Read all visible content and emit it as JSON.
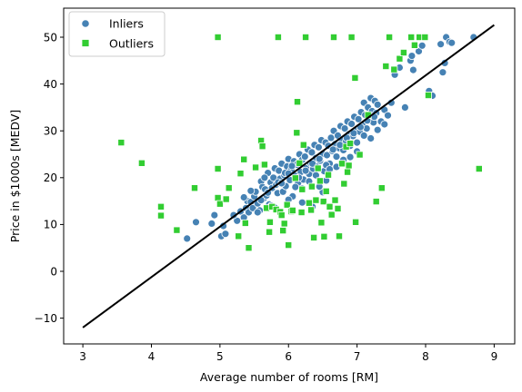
{
  "chart_data": {
    "type": "scatter",
    "xlabel": "Average number of rooms [RM]",
    "ylabel": "Price in $1000s [MEDV]",
    "xlim": [
      2.72,
      9.3
    ],
    "ylim": [
      -15.5,
      56.2
    ],
    "xticks": [
      3,
      4,
      5,
      6,
      7,
      8,
      9
    ],
    "yticks": [
      -10,
      0,
      10,
      20,
      30,
      40,
      50
    ],
    "grid": false,
    "legend": {
      "position": "upper-left",
      "entries": [
        "Inliers",
        "Outliers"
      ]
    },
    "colors": {
      "inliers": "#4682b4",
      "outliers": "#32cd32",
      "fit_line": "#000000",
      "marker_edge": "#ffffff"
    },
    "series": [
      {
        "name": "Inliers",
        "marker": "circle",
        "points": [
          [
            4.52,
            7.0
          ],
          [
            4.65,
            10.5
          ],
          [
            4.88,
            10.2
          ],
          [
            4.92,
            12.0
          ],
          [
            5.02,
            7.5
          ],
          [
            5.08,
            8.0
          ],
          [
            5.05,
            9.7
          ],
          [
            5.25,
            10.8
          ],
          [
            5.3,
            12.8
          ],
          [
            5.35,
            11.5
          ],
          [
            5.38,
            13.5
          ],
          [
            5.4,
            15.0
          ],
          [
            5.42,
            12.6
          ],
          [
            5.45,
            14.8
          ],
          [
            5.48,
            13.5
          ],
          [
            5.5,
            16.0
          ],
          [
            5.52,
            17.0
          ],
          [
            5.55,
            14.5
          ],
          [
            5.58,
            13.0
          ],
          [
            5.6,
            19.2
          ],
          [
            5.62,
            18.0
          ],
          [
            5.64,
            15.6
          ],
          [
            5.66,
            17.5
          ],
          [
            5.68,
            16.2
          ],
          [
            5.7,
            21.0
          ],
          [
            5.72,
            14.3
          ],
          [
            5.74,
            19.0
          ],
          [
            5.76,
            17.8
          ],
          [
            5.78,
            20.0
          ],
          [
            5.8,
            22.0
          ],
          [
            5.82,
            18.5
          ],
          [
            5.84,
            16.7
          ],
          [
            5.86,
            21.5
          ],
          [
            5.88,
            19.8
          ],
          [
            5.9,
            23.0
          ],
          [
            5.92,
            17.0
          ],
          [
            5.94,
            20.5
          ],
          [
            5.96,
            18.2
          ],
          [
            5.98,
            22.4
          ],
          [
            6.0,
            24.0
          ],
          [
            6.02,
            19.5
          ],
          [
            6.04,
            21.7
          ],
          [
            6.06,
            16.0
          ],
          [
            6.08,
            23.5
          ],
          [
            6.1,
            20.4
          ],
          [
            6.12,
            22.8
          ],
          [
            6.14,
            18.9
          ],
          [
            6.16,
            25.0
          ],
          [
            6.18,
            21.2
          ],
          [
            6.2,
            23.8
          ],
          [
            6.22,
            19.6
          ],
          [
            6.24,
            24.5
          ],
          [
            6.26,
            22.0
          ],
          [
            6.28,
            26.0
          ],
          [
            6.3,
            20.8
          ],
          [
            6.32,
            23.1
          ],
          [
            6.34,
            25.4
          ],
          [
            6.36,
            21.9
          ],
          [
            6.38,
            27.0
          ],
          [
            6.4,
            24.2
          ],
          [
            6.42,
            22.5
          ],
          [
            6.44,
            26.5
          ],
          [
            6.46,
            23.6
          ],
          [
            6.48,
            28.0
          ],
          [
            6.5,
            25.1
          ],
          [
            6.52,
            21.4
          ],
          [
            6.54,
            27.5
          ],
          [
            6.56,
            24.8
          ],
          [
            6.58,
            26.8
          ],
          [
            6.6,
            23.0
          ],
          [
            6.62,
            28.5
          ],
          [
            6.64,
            25.7
          ],
          [
            6.66,
            30.0
          ],
          [
            6.68,
            27.2
          ],
          [
            6.7,
            24.5
          ],
          [
            6.72,
            29.0
          ],
          [
            6.74,
            26.3
          ],
          [
            6.76,
            31.0
          ],
          [
            6.78,
            28.0
          ],
          [
            6.8,
            25.9
          ],
          [
            6.82,
            30.5
          ],
          [
            6.84,
            27.8
          ],
          [
            6.86,
            32.0
          ],
          [
            6.88,
            29.3
          ],
          [
            6.9,
            26.8
          ],
          [
            6.92,
            31.5
          ],
          [
            6.94,
            28.9
          ],
          [
            6.96,
            33.0
          ],
          [
            6.98,
            30.2
          ],
          [
            7.0,
            27.5
          ],
          [
            7.02,
            32.5
          ],
          [
            7.04,
            29.8
          ],
          [
            7.06,
            34.0
          ],
          [
            7.08,
            31.2
          ],
          [
            7.1,
            36.0
          ],
          [
            7.12,
            33.4
          ],
          [
            7.14,
            30.5
          ],
          [
            7.16,
            35.0
          ],
          [
            7.18,
            32.6
          ],
          [
            7.2,
            37.0
          ],
          [
            7.22,
            34.2
          ],
          [
            7.24,
            31.8
          ],
          [
            7.26,
            36.4
          ],
          [
            7.28,
            33.8
          ],
          [
            7.3,
            35.6
          ],
          [
            7.35,
            32.0
          ],
          [
            7.4,
            34.5
          ],
          [
            7.5,
            36.0
          ],
          [
            7.55,
            42.0
          ],
          [
            7.62,
            43.5
          ],
          [
            7.7,
            35.0
          ],
          [
            7.78,
            45.0
          ],
          [
            7.8,
            46.0
          ],
          [
            7.82,
            43.0
          ],
          [
            7.9,
            47.0
          ],
          [
            7.95,
            48.2
          ],
          [
            8.05,
            38.5
          ],
          [
            8.1,
            37.5
          ],
          [
            8.22,
            48.5
          ],
          [
            8.25,
            42.5
          ],
          [
            8.28,
            44.5
          ],
          [
            8.3,
            50.0
          ],
          [
            8.35,
            49.0
          ],
          [
            8.38,
            48.8
          ],
          [
            8.7,
            50.0
          ],
          [
            5.2,
            12.0
          ],
          [
            5.6,
            15.2
          ],
          [
            5.7,
            16.8
          ],
          [
            5.75,
            14.0
          ],
          [
            5.85,
            19.0
          ],
          [
            5.95,
            21.0
          ],
          [
            6.05,
            22.5
          ],
          [
            6.15,
            20.0
          ],
          [
            6.25,
            21.5
          ],
          [
            6.35,
            23.0
          ],
          [
            6.45,
            24.0
          ],
          [
            6.55,
            22.7
          ],
          [
            6.65,
            26.0
          ],
          [
            6.75,
            27.0
          ],
          [
            6.85,
            28.5
          ],
          [
            6.95,
            29.5
          ],
          [
            7.05,
            30.8
          ],
          [
            7.15,
            32.2
          ],
          [
            7.25,
            33.0
          ],
          [
            5.65,
            20.0
          ],
          [
            5.9,
            18.8
          ],
          [
            6.0,
            20.9
          ],
          [
            6.1,
            18.0
          ],
          [
            6.2,
            17.7
          ],
          [
            6.3,
            19.2
          ],
          [
            6.4,
            20.5
          ],
          [
            6.6,
            21.8
          ],
          [
            6.7,
            22.3
          ],
          [
            6.8,
            23.8
          ],
          [
            5.55,
            12.6
          ],
          [
            5.45,
            17.2
          ],
          [
            5.35,
            15.8
          ],
          [
            5.8,
            13.6
          ],
          [
            6.0,
            15.3
          ],
          [
            6.2,
            14.7
          ],
          [
            6.35,
            13.8
          ],
          [
            6.5,
            16.9
          ],
          [
            6.45,
            18.1
          ],
          [
            6.55,
            19.4
          ],
          [
            6.9,
            24.4
          ],
          [
            7.0,
            25.6
          ],
          [
            7.1,
            29.0
          ],
          [
            7.2,
            28.4
          ],
          [
            7.3,
            30.2
          ],
          [
            7.4,
            31.4
          ],
          [
            7.45,
            33.3
          ]
        ]
      },
      {
        "name": "Outliers",
        "marker": "square",
        "points": [
          [
            3.56,
            27.5
          ],
          [
            3.86,
            23.1
          ],
          [
            4.14,
            13.8
          ],
          [
            4.14,
            11.9
          ],
          [
            4.37,
            8.8
          ],
          [
            4.63,
            17.8
          ],
          [
            4.97,
            21.9
          ],
          [
            4.97,
            50.0
          ],
          [
            4.97,
            15.7
          ],
          [
            5.0,
            14.4
          ],
          [
            5.09,
            15.4
          ],
          [
            5.13,
            17.8
          ],
          [
            5.27,
            7.5
          ],
          [
            5.3,
            20.9
          ],
          [
            5.35,
            23.9
          ],
          [
            5.37,
            10.3
          ],
          [
            5.42,
            5.0
          ],
          [
            5.52,
            22.2
          ],
          [
            5.6,
            27.9
          ],
          [
            5.62,
            26.7
          ],
          [
            5.64,
            22.7
          ],
          [
            5.68,
            13.5
          ],
          [
            5.72,
            8.4
          ],
          [
            5.73,
            10.5
          ],
          [
            5.76,
            13.8
          ],
          [
            5.82,
            13.2
          ],
          [
            5.85,
            50.0
          ],
          [
            5.88,
            12.7
          ],
          [
            5.92,
            8.7
          ],
          [
            5.94,
            10.2
          ],
          [
            5.98,
            14.2
          ],
          [
            6.0,
            5.6
          ],
          [
            6.04,
            12.8
          ],
          [
            6.1,
            19.9
          ],
          [
            6.12,
            29.6
          ],
          [
            6.13,
            36.2
          ],
          [
            6.16,
            23.1
          ],
          [
            6.19,
            12.6
          ],
          [
            6.22,
            27.0
          ],
          [
            6.25,
            50.0
          ],
          [
            6.3,
            14.6
          ],
          [
            6.33,
            13.1
          ],
          [
            6.37,
            7.2
          ],
          [
            6.4,
            15.2
          ],
          [
            6.43,
            22.0
          ],
          [
            6.48,
            10.4
          ],
          [
            6.51,
            14.9
          ],
          [
            6.52,
            7.4
          ],
          [
            6.55,
            17.1
          ],
          [
            6.58,
            20.6
          ],
          [
            6.6,
            13.8
          ],
          [
            6.63,
            12.1
          ],
          [
            6.66,
            50.0
          ],
          [
            6.72,
            13.4
          ],
          [
            6.74,
            7.5
          ],
          [
            6.78,
            23.0
          ],
          [
            6.81,
            18.7
          ],
          [
            6.84,
            26.6
          ],
          [
            6.86,
            21.2
          ],
          [
            6.88,
            22.6
          ],
          [
            6.92,
            50.0
          ],
          [
            6.97,
            41.3
          ],
          [
            6.98,
            10.5
          ],
          [
            7.04,
            24.9
          ],
          [
            7.16,
            33.4
          ],
          [
            7.28,
            14.9
          ],
          [
            7.36,
            17.8
          ],
          [
            7.42,
            43.8
          ],
          [
            7.47,
            50.0
          ],
          [
            7.54,
            43.1
          ],
          [
            7.62,
            45.4
          ],
          [
            7.68,
            46.7
          ],
          [
            7.79,
            50.0
          ],
          [
            7.84,
            48.3
          ],
          [
            7.91,
            50.0
          ],
          [
            7.99,
            50.0
          ],
          [
            8.04,
            37.6
          ],
          [
            8.78,
            21.9
          ],
          [
            5.65,
            22.8
          ],
          [
            5.9,
            12.0
          ],
          [
            6.06,
            13.0
          ],
          [
            6.2,
            17.5
          ],
          [
            6.34,
            18.1
          ],
          [
            6.46,
            19.3
          ],
          [
            6.68,
            15.2
          ],
          [
            6.9,
            27.3
          ]
        ]
      }
    ],
    "fit_line": {
      "x": [
        3.0,
        9.0
      ],
      "y": [
        -12.0,
        52.6
      ]
    }
  }
}
